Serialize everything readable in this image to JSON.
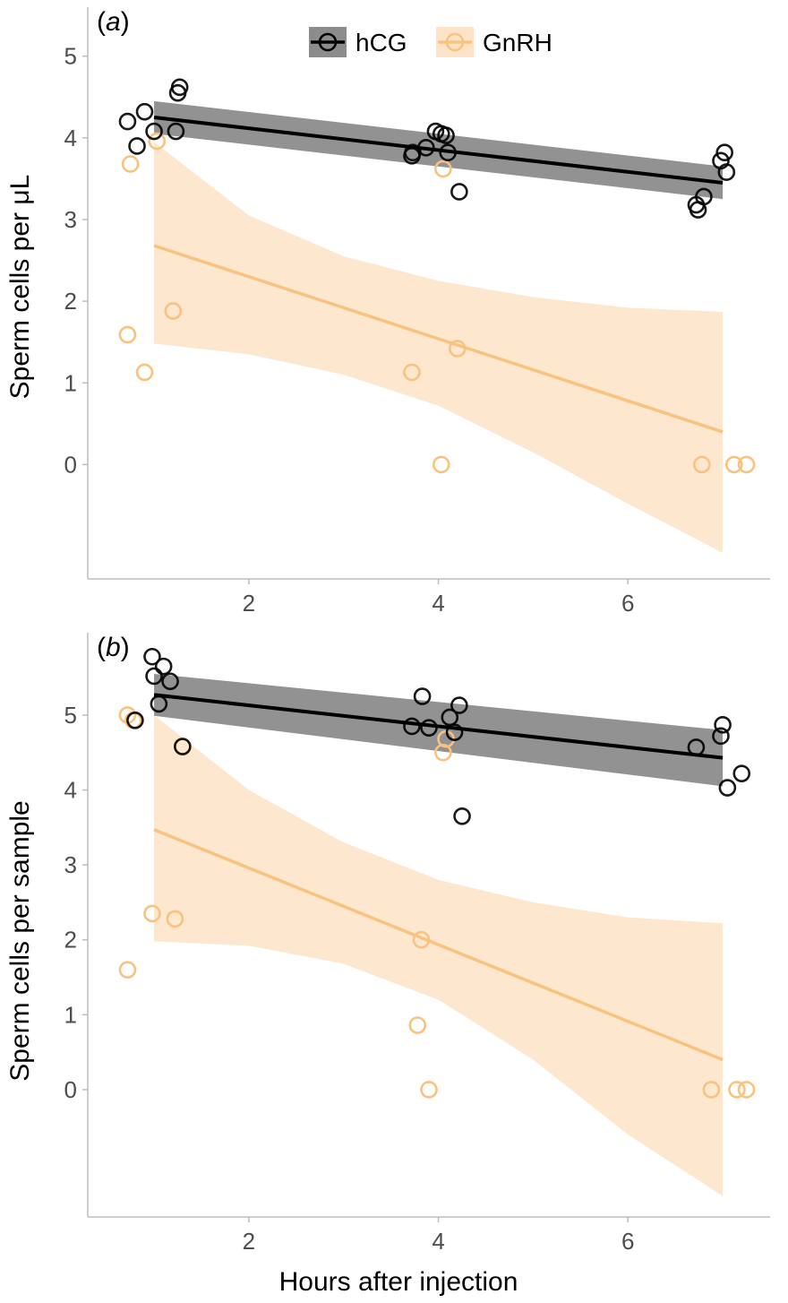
{
  "colors": {
    "hCG": "#000000",
    "GnRH": "#f9c27f",
    "hCG_band": "#8c8c8c",
    "GnRH_band": "#fde3c7",
    "axis": "#bdbdbd",
    "tick_text": "#4d4d4d"
  },
  "legend": {
    "items": [
      "hCG",
      "GnRH"
    ],
    "placement": "top-center"
  },
  "xlabel": "Hours after injection",
  "chart_data": [
    {
      "panel": "a",
      "panel_label": "(a)",
      "type": "scatter",
      "ylabel": "Sperm cells per μL",
      "xlim": [
        0.3,
        7.5
      ],
      "ylim": [
        -1.4,
        5.6
      ],
      "xticks": [
        2,
        4,
        6
      ],
      "yticks": [
        0,
        1,
        2,
        3,
        4,
        5
      ],
      "grid": false,
      "series": [
        {
          "name": "hCG",
          "points": [
            [
              0.72,
              4.2
            ],
            [
              0.9,
              4.32
            ],
            [
              0.82,
              3.9
            ],
            [
              1.0,
              4.08
            ],
            [
              1.25,
              4.55
            ],
            [
              1.27,
              4.62
            ],
            [
              1.23,
              4.08
            ],
            [
              3.72,
              3.78
            ],
            [
              3.73,
              3.82
            ],
            [
              3.87,
              3.88
            ],
            [
              3.97,
              4.08
            ],
            [
              4.03,
              4.05
            ],
            [
              4.08,
              4.03
            ],
            [
              4.1,
              3.82
            ],
            [
              4.22,
              3.34
            ],
            [
              6.72,
              3.18
            ],
            [
              6.74,
              3.12
            ],
            [
              6.8,
              3.28
            ],
            [
              6.98,
              3.72
            ],
            [
              7.02,
              3.82
            ],
            [
              7.04,
              3.58
            ]
          ],
          "fit": {
            "x": [
              1.0,
              7.0
            ],
            "y": [
              4.25,
              3.45
            ]
          },
          "ci": {
            "x": [
              1.0,
              7.0
            ],
            "upper": [
              4.45,
              3.65
            ],
            "lower": [
              4.05,
              3.25
            ]
          }
        },
        {
          "name": "GnRH",
          "points": [
            [
              0.75,
              3.68
            ],
            [
              1.03,
              3.96
            ],
            [
              0.72,
              1.59
            ],
            [
              0.9,
              1.13
            ],
            [
              1.2,
              1.88
            ],
            [
              3.72,
              1.13
            ],
            [
              3.73,
              3.82
            ],
            [
              4.05,
              3.62
            ],
            [
              4.2,
              1.42
            ],
            [
              4.03,
              0.0
            ],
            [
              6.78,
              0.0
            ],
            [
              7.12,
              0.0
            ],
            [
              7.25,
              0.0
            ]
          ],
          "fit": {
            "x": [
              1.0,
              7.0
            ],
            "y": [
              2.68,
              0.4
            ]
          },
          "ci": {
            "x": [
              1.0,
              2.0,
              3.0,
              4.0,
              5.0,
              6.0,
              7.0
            ],
            "upper": [
              3.95,
              3.05,
              2.55,
              2.25,
              2.05,
              1.92,
              1.87
            ],
            "lower": [
              1.48,
              1.35,
              1.1,
              0.72,
              0.15,
              -0.48,
              -1.08
            ]
          }
        }
      ]
    },
    {
      "panel": "b",
      "panel_label": "(b)",
      "type": "scatter",
      "ylabel": "Sperm cells per sample",
      "xlim": [
        0.3,
        7.5
      ],
      "ylim": [
        -1.7,
        6.1
      ],
      "xticks": [
        2,
        4,
        6
      ],
      "yticks": [
        0,
        1,
        2,
        3,
        4,
        5
      ],
      "grid": false,
      "series": [
        {
          "name": "hCG",
          "points": [
            [
              0.98,
              5.78
            ],
            [
              1.1,
              5.65
            ],
            [
              1.17,
              5.45
            ],
            [
              1.0,
              5.52
            ],
            [
              1.05,
              5.15
            ],
            [
              0.8,
              4.93
            ],
            [
              1.3,
              4.58
            ],
            [
              3.72,
              4.85
            ],
            [
              3.83,
              5.25
            ],
            [
              3.9,
              4.83
            ],
            [
              4.12,
              4.97
            ],
            [
              4.17,
              4.77
            ],
            [
              4.22,
              5.13
            ],
            [
              4.25,
              3.65
            ],
            [
              6.72,
              4.57
            ],
            [
              6.98,
              4.72
            ],
            [
              7.0,
              4.87
            ],
            [
              7.05,
              4.03
            ],
            [
              7.2,
              4.22
            ]
          ],
          "fit": {
            "x": [
              1.0,
              7.0
            ],
            "y": [
              5.27,
              4.43
            ]
          },
          "ci": {
            "x": [
              1.0,
              7.0
            ],
            "upper": [
              5.55,
              4.8
            ],
            "lower": [
              4.99,
              4.05
            ]
          }
        },
        {
          "name": "GnRH",
          "points": [
            [
              0.72,
              5.0
            ],
            [
              0.78,
              4.93
            ],
            [
              1.3,
              4.58
            ],
            [
              0.98,
              2.35
            ],
            [
              1.22,
              2.28
            ],
            [
              0.72,
              1.6
            ],
            [
              3.82,
              2.0
            ],
            [
              3.78,
              0.86
            ],
            [
              3.9,
              0.0
            ],
            [
              4.05,
              4.5
            ],
            [
              4.08,
              4.68
            ],
            [
              6.88,
              0.0
            ],
            [
              7.15,
              0.0
            ],
            [
              7.25,
              0.0
            ]
          ],
          "fit": {
            "x": [
              1.0,
              7.0
            ],
            "y": [
              3.47,
              0.4
            ]
          },
          "ci": {
            "x": [
              1.0,
              2.0,
              3.0,
              4.0,
              5.0,
              6.0,
              7.0
            ],
            "upper": [
              5.0,
              4.0,
              3.3,
              2.8,
              2.5,
              2.3,
              2.22
            ],
            "lower": [
              1.98,
              1.92,
              1.68,
              1.2,
              0.4,
              -0.6,
              -1.42
            ]
          }
        }
      ]
    }
  ]
}
